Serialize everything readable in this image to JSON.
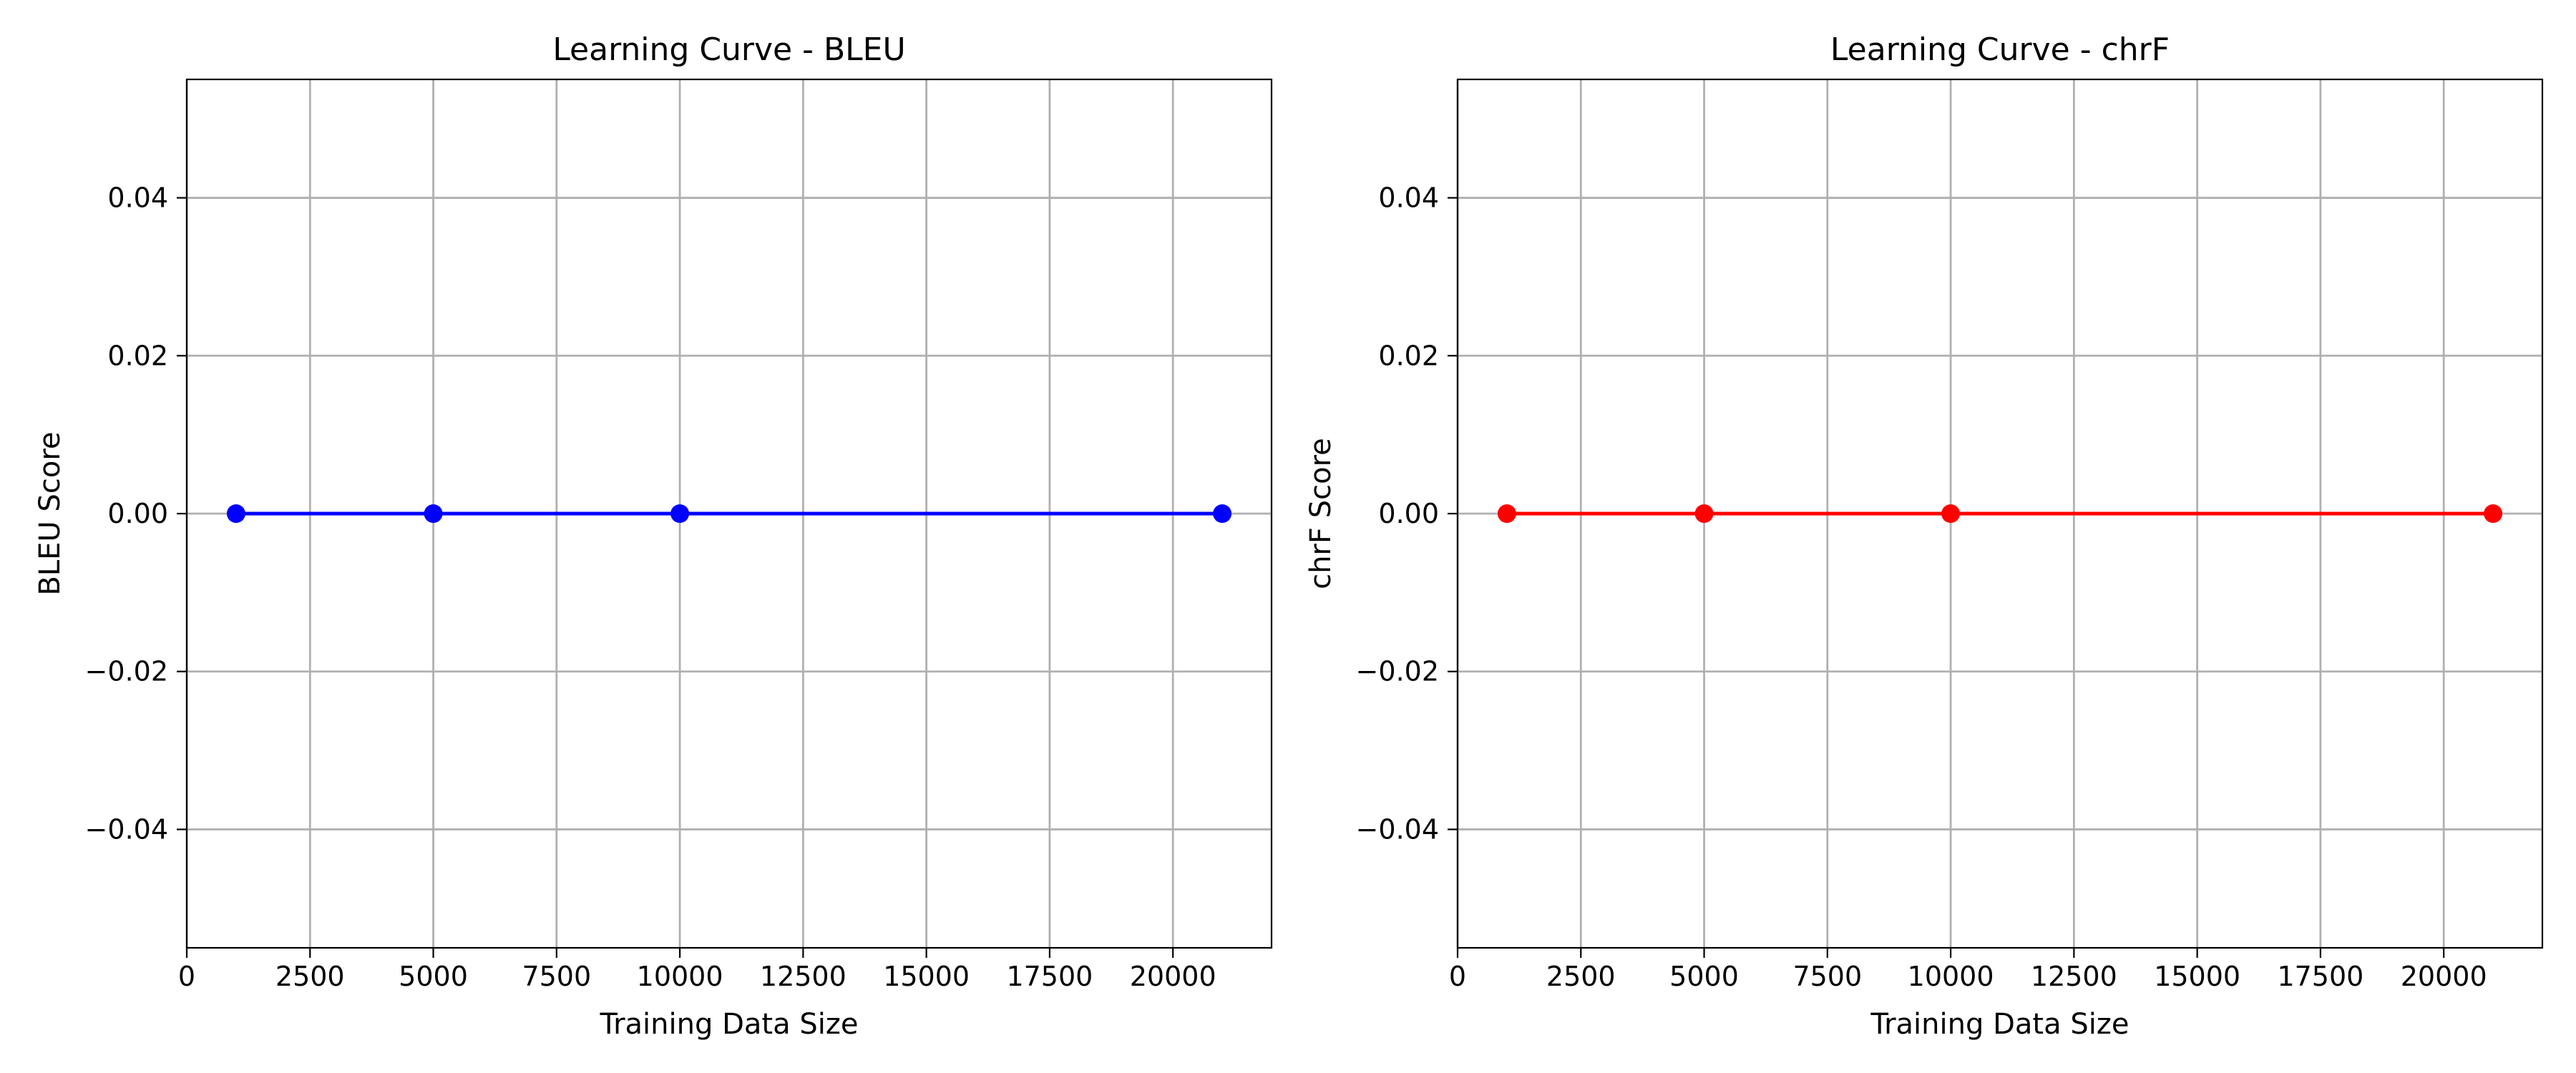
{
  "chart_data": [
    {
      "type": "line",
      "title": "Learning Curve - BLEU",
      "xlabel": "Training Data Size",
      "ylabel": "BLEU Score",
      "x": [
        1000,
        5000,
        10000,
        21000
      ],
      "series": [
        {
          "values": [
            0.0,
            0.0,
            0.0,
            0.0
          ],
          "color": "#0000ff",
          "marker": "circle"
        }
      ],
      "xlim": [
        0,
        22000
      ],
      "ylim": [
        -0.055,
        0.055
      ],
      "xticks": [
        0,
        2500,
        5000,
        7500,
        10000,
        12500,
        15000,
        17500,
        20000
      ],
      "xtick_labels": [
        "0",
        "2500",
        "5000",
        "7500",
        "10000",
        "12500",
        "15000",
        "17500",
        "20000"
      ],
      "yticks": [
        -0.04,
        -0.02,
        0.0,
        0.02,
        0.04
      ],
      "ytick_labels": [
        "−0.04",
        "−0.02",
        "0.00",
        "0.02",
        "0.04"
      ],
      "grid": true
    },
    {
      "type": "line",
      "title": "Learning Curve - chrF",
      "xlabel": "Training Data Size",
      "ylabel": "chrF Score",
      "x": [
        1000,
        5000,
        10000,
        21000
      ],
      "series": [
        {
          "values": [
            0.0,
            0.0,
            0.0,
            0.0
          ],
          "color": "#ff0000",
          "marker": "circle"
        }
      ],
      "xlim": [
        0,
        22000
      ],
      "ylim": [
        -0.055,
        0.055
      ],
      "xticks": [
        0,
        2500,
        5000,
        7500,
        10000,
        12500,
        15000,
        17500,
        20000
      ],
      "xtick_labels": [
        "0",
        "2500",
        "5000",
        "7500",
        "10000",
        "12500",
        "15000",
        "17500",
        "20000"
      ],
      "yticks": [
        -0.04,
        -0.02,
        0.0,
        0.02,
        0.04
      ],
      "ytick_labels": [
        "−0.04",
        "−0.02",
        "0.00",
        "0.02",
        "0.04"
      ],
      "grid": true
    }
  ]
}
